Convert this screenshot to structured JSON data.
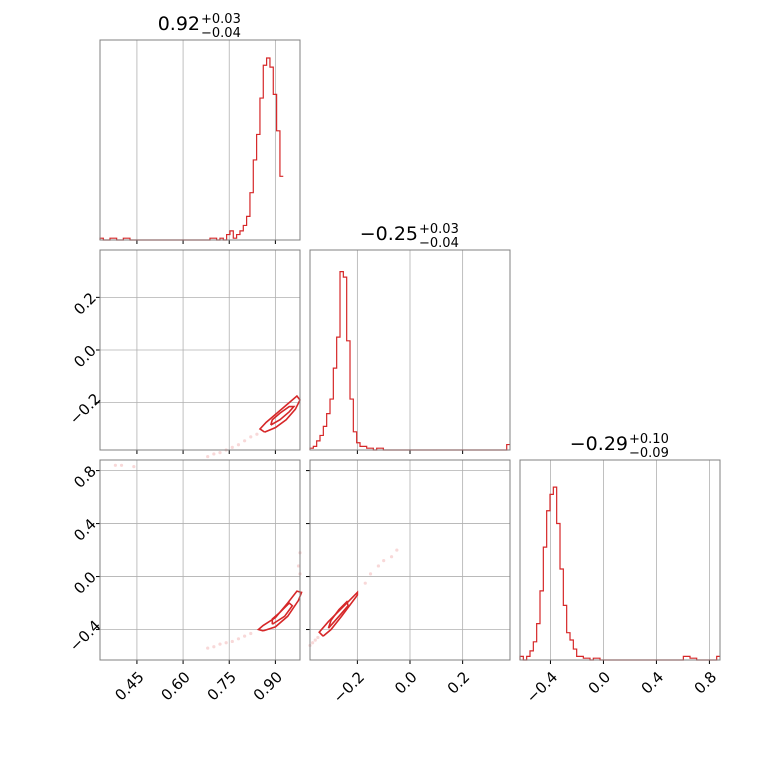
{
  "chart_data": {
    "type": "corner",
    "color": "#d62728",
    "params": [
      {
        "median": "0.92",
        "plus": "+0.03",
        "minus": "−0.04",
        "range": [
          0.33,
          0.98
        ]
      },
      {
        "median": "−0.25",
        "plus": "+0.03",
        "minus": "−0.04",
        "range": [
          -0.38,
          0.38
        ]
      },
      {
        "median": "−0.29",
        "plus": "+0.10",
        "minus": "−0.09",
        "range": [
          -0.63,
          0.88
        ]
      }
    ],
    "axis_ticks": [
      {
        "values": [
          0.45,
          0.6,
          0.75,
          0.9
        ],
        "labels": [
          "0.45",
          "0.60",
          "0.75",
          "0.90"
        ]
      },
      {
        "values": [
          -0.2,
          0.0,
          0.2
        ],
        "labels": [
          "−0.2",
          "0.0",
          "0.2"
        ]
      },
      {
        "values": [
          -0.4,
          0.0,
          0.4,
          0.8
        ],
        "labels": [
          "−0.4",
          "0.0",
          "0.4",
          "0.8"
        ]
      }
    ],
    "histograms": [
      {
        "bin_start": 0.33,
        "bin_width": 0.01083,
        "counts": [
          0.01,
          0.0,
          0,
          0.01,
          0.01,
          0,
          0,
          0.01,
          0.01,
          0,
          0,
          0,
          0,
          0,
          0,
          0,
          0,
          0,
          0,
          0,
          0,
          0,
          0,
          0,
          0,
          0,
          0,
          0,
          0,
          0,
          0,
          0,
          0,
          0.01,
          0.01,
          0,
          0.01,
          0,
          0.03,
          0.05,
          0.01,
          0.03,
          0.05,
          0.08,
          0.13,
          0.26,
          0.44,
          0.58,
          0.78,
          0.96,
          1.0,
          0.95,
          0.8,
          0.6,
          0.35
        ]
      },
      {
        "bin_start": -0.38,
        "bin_width": 0.01267,
        "counts": [
          0.01,
          0.02,
          0.05,
          0.08,
          0.13,
          0.2,
          0.28,
          0.45,
          0.62,
          0.98,
          0.95,
          0.6,
          0.28,
          0.1,
          0.04,
          0.02,
          0.02,
          0.01,
          0.01,
          0,
          0.01,
          0.01,
          0,
          0,
          0,
          0,
          0,
          0,
          0,
          0,
          0,
          0,
          0,
          0,
          0,
          0,
          0,
          0,
          0,
          0,
          0,
          0,
          0,
          0,
          0,
          0,
          0,
          0,
          0,
          0,
          0,
          0,
          0,
          0,
          0,
          0,
          0,
          0,
          0,
          0.03
        ]
      },
      {
        "bin_start": -0.63,
        "bin_width": 0.02517,
        "counts": [
          0.02,
          0.0,
          0.02,
          0.05,
          0.1,
          0.2,
          0.38,
          0.62,
          0.82,
          0.91,
          0.95,
          0.75,
          0.5,
          0.3,
          0.15,
          0.11,
          0.06,
          0.02,
          0.02,
          0.01,
          0.01,
          0,
          0.01,
          0.01,
          0,
          0,
          0,
          0,
          0,
          0,
          0,
          0,
          0,
          0,
          0,
          0,
          0,
          0,
          0,
          0,
          0,
          0,
          0,
          0,
          0,
          0,
          0,
          0,
          0,
          0.02,
          0.02,
          0.01,
          0.01,
          0,
          0,
          0,
          0,
          0,
          0,
          0.02
        ]
      }
    ],
    "joint_2d": [
      {
        "x_param": 0,
        "y_param": 1,
        "contours": [
          [
            [
              0.865,
              -0.312
            ],
            [
              0.9,
              -0.295
            ],
            [
              0.935,
              -0.265
            ],
            [
              0.965,
              -0.225
            ],
            [
              0.98,
              -0.19
            ],
            [
              0.97,
              -0.175
            ],
            [
              0.935,
              -0.21
            ],
            [
              0.9,
              -0.245
            ],
            [
              0.87,
              -0.275
            ],
            [
              0.85,
              -0.3
            ],
            [
              0.865,
              -0.312
            ]
          ],
          [
            [
              0.885,
              -0.285
            ],
            [
              0.915,
              -0.265
            ],
            [
              0.945,
              -0.235
            ],
            [
              0.96,
              -0.215
            ],
            [
              0.945,
              -0.215
            ],
            [
              0.915,
              -0.24
            ],
            [
              0.89,
              -0.265
            ],
            [
              0.885,
              -0.285
            ]
          ]
        ],
        "points": [
          [
            0.82,
            -0.33
          ],
          [
            0.8,
            -0.345
          ],
          [
            0.78,
            -0.36
          ],
          [
            0.76,
            -0.37
          ],
          [
            0.74,
            -0.38
          ],
          [
            0.72,
            -0.39
          ],
          [
            0.7,
            -0.395
          ],
          [
            0.68,
            -0.405
          ],
          [
            0.84,
            -0.32
          ]
        ]
      },
      {
        "x_param": 0,
        "y_param": 2,
        "contours": [
          [
            [
              0.86,
              -0.41
            ],
            [
              0.9,
              -0.38
            ],
            [
              0.94,
              -0.3
            ],
            [
              0.975,
              -0.18
            ],
            [
              0.985,
              -0.12
            ],
            [
              0.97,
              -0.11
            ],
            [
              0.94,
              -0.2
            ],
            [
              0.9,
              -0.31
            ],
            [
              0.86,
              -0.37
            ],
            [
              0.845,
              -0.4
            ],
            [
              0.86,
              -0.41
            ]
          ],
          [
            [
              0.89,
              -0.36
            ],
            [
              0.93,
              -0.3
            ],
            [
              0.955,
              -0.22
            ],
            [
              0.945,
              -0.2
            ],
            [
              0.915,
              -0.27
            ],
            [
              0.89,
              -0.32
            ],
            [
              0.89,
              -0.36
            ]
          ]
        ],
        "points": [
          [
            0.82,
            -0.43
          ],
          [
            0.8,
            -0.45
          ],
          [
            0.78,
            -0.47
          ],
          [
            0.76,
            -0.49
          ],
          [
            0.74,
            -0.5
          ],
          [
            0.72,
            -0.51
          ],
          [
            0.7,
            -0.53
          ],
          [
            0.68,
            -0.54
          ],
          [
            0.98,
            0.02
          ],
          [
            0.975,
            0.08
          ],
          [
            0.98,
            0.18
          ],
          [
            0.38,
            0.84
          ],
          [
            0.4,
            0.84
          ],
          [
            0.44,
            0.83
          ]
        ]
      },
      {
        "x_param": 1,
        "y_param": 2,
        "contours": [
          [
            [
              -0.33,
              -0.45
            ],
            [
              -0.3,
              -0.4
            ],
            [
              -0.26,
              -0.3
            ],
            [
              -0.2,
              -0.14
            ],
            [
              -0.2,
              -0.12
            ],
            [
              -0.23,
              -0.18
            ],
            [
              -0.27,
              -0.26
            ],
            [
              -0.31,
              -0.34
            ],
            [
              -0.345,
              -0.42
            ],
            [
              -0.33,
              -0.45
            ]
          ],
          [
            [
              -0.31,
              -0.39
            ],
            [
              -0.27,
              -0.3
            ],
            [
              -0.235,
              -0.22
            ],
            [
              -0.24,
              -0.19
            ],
            [
              -0.27,
              -0.25
            ],
            [
              -0.3,
              -0.33
            ],
            [
              -0.31,
              -0.39
            ]
          ]
        ],
        "points": [
          [
            -0.35,
            -0.46
          ],
          [
            -0.36,
            -0.48
          ],
          [
            -0.37,
            -0.5
          ],
          [
            -0.38,
            -0.52
          ],
          [
            -0.17,
            -0.05
          ],
          [
            -0.15,
            0.02
          ],
          [
            -0.12,
            0.08
          ],
          [
            -0.1,
            0.12
          ],
          [
            -0.07,
            0.15
          ],
          [
            -0.05,
            0.2
          ]
        ]
      }
    ]
  }
}
